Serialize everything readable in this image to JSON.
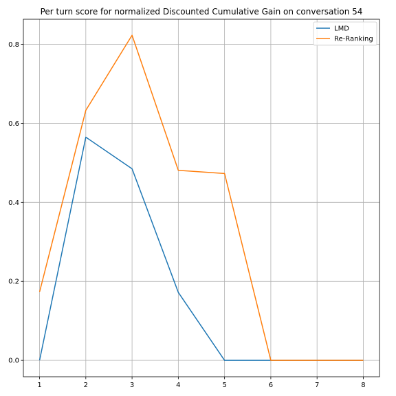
{
  "chart_data": {
    "type": "line",
    "title": "Per turn score for normalized Discounted Cumulative Gain on conversation 54",
    "xlabel": "",
    "ylabel": "",
    "x": [
      1,
      2,
      3,
      4,
      5,
      6,
      7,
      8
    ],
    "xlim": [
      0.65,
      8.35
    ],
    "ylim": [
      -0.0415,
      0.8635
    ],
    "xticks": [
      "1",
      "2",
      "3",
      "4",
      "5",
      "6",
      "7",
      "8"
    ],
    "yticks": [
      "0.0",
      "0.2",
      "0.4",
      "0.6",
      "0.8"
    ],
    "grid": true,
    "legend_position": "top-right",
    "series": [
      {
        "name": "LMD",
        "color": "#1f77b4",
        "values": [
          0.0,
          0.565,
          0.485,
          0.172,
          0.0,
          0.0,
          0.0,
          0.0
        ]
      },
      {
        "name": "Re-Ranking",
        "color": "#ff7f0e",
        "values": [
          0.173,
          0.633,
          0.823,
          0.481,
          0.473,
          0.0,
          0.0,
          0.0
        ]
      }
    ]
  }
}
